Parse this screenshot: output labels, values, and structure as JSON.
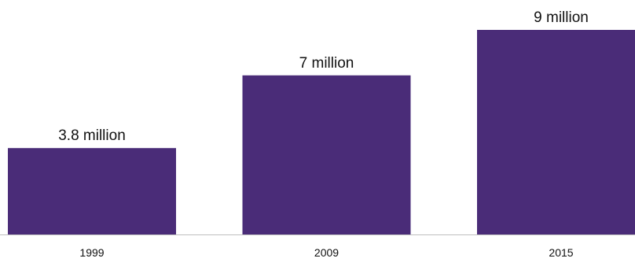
{
  "chart_data": {
    "type": "bar",
    "categories": [
      "1999",
      "2009",
      "2015"
    ],
    "values": [
      3.8,
      7,
      9
    ],
    "data_labels": [
      "3.8 million",
      "7 million",
      "9 million"
    ],
    "title": "",
    "xlabel": "",
    "ylabel": "",
    "ylim": [
      0,
      9
    ],
    "grid": false,
    "legend": "none",
    "bar_color": "#4a2c78",
    "axis_color": "#bfbfbf"
  }
}
